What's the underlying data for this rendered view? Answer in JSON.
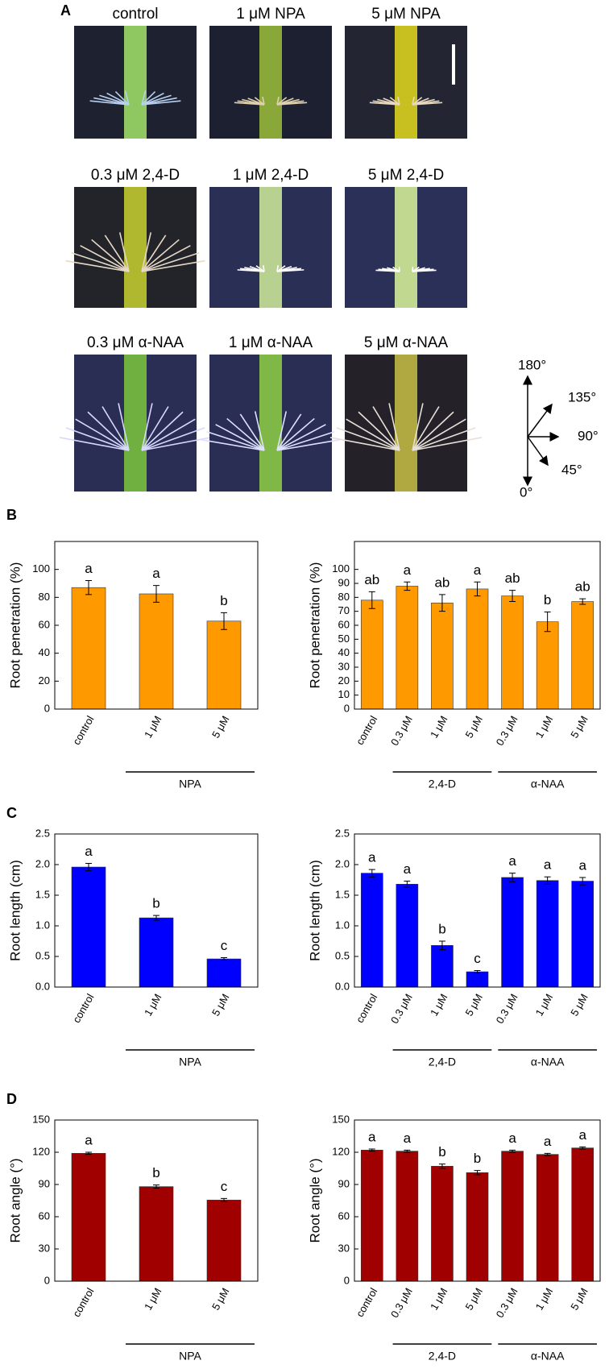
{
  "panel_labels": [
    "A",
    "B",
    "C",
    "D"
  ],
  "panel_a": {
    "photos": [
      "control",
      "1 μM NPA",
      "5 μM NPA",
      "0.3 μM 2,4-D",
      "1 μM 2,4-D",
      "5 μM 2,4-D",
      "0.3 μM α-NAA",
      "1 μM α-NAA",
      "5 μM α-NAA"
    ],
    "angles": [
      "180°",
      "135°",
      "90°",
      "45°",
      "0°"
    ]
  },
  "chart_data": [
    {
      "type": "bar",
      "ylabel": "Root penetration (%)",
      "color": "#ff9900",
      "categories": [
        "control",
        "1 μM",
        "5 μM"
      ],
      "values": [
        87,
        82.5,
        63
      ],
      "errors": [
        5,
        6,
        6
      ],
      "annotations": [
        "a",
        "a",
        "b"
      ],
      "groups": [
        {
          "name": "NPA",
          "first": 1,
          "last": 2
        }
      ],
      "ylim": [
        0,
        120
      ],
      "yticks": [
        0,
        20,
        40,
        60,
        80,
        100
      ]
    },
    {
      "type": "bar",
      "ylabel": "Root penetration (%)",
      "color": "#ff9900",
      "categories": [
        "control",
        "0.3 μM",
        "1 μM",
        "5 μM",
        "0.3 μM",
        "1 μM",
        "5 μM"
      ],
      "values": [
        78,
        88,
        76,
        86,
        81,
        62.5,
        77
      ],
      "errors": [
        6,
        3,
        6,
        5,
        4,
        7,
        2
      ],
      "annotations": [
        "ab",
        "a",
        "ab",
        "a",
        "ab",
        "b",
        "ab"
      ],
      "groups": [
        {
          "name": "2,4-D",
          "first": 1,
          "last": 3
        },
        {
          "name": "α-NAA",
          "first": 4,
          "last": 6
        }
      ],
      "ylim": [
        0,
        120
      ],
      "yticks": [
        0,
        10,
        20,
        30,
        40,
        50,
        60,
        70,
        80,
        90,
        100
      ]
    },
    {
      "type": "bar",
      "ylabel": "Root length (cm)",
      "color": "#0000ff",
      "categories": [
        "control",
        "1 μM",
        "5 μM"
      ],
      "values": [
        1.96,
        1.13,
        0.46
      ],
      "errors": [
        0.06,
        0.04,
        0.02
      ],
      "annotations": [
        "a",
        "b",
        "c"
      ],
      "groups": [
        {
          "name": "NPA",
          "first": 1,
          "last": 2
        }
      ],
      "ylim": [
        0,
        2.5
      ],
      "yticks": [
        {
          "value": 0,
          "label": "0.0"
        },
        0.5,
        {
          "value": 1,
          "label": "1.0"
        },
        1.5,
        {
          "value": 2,
          "label": "2.0"
        },
        2.5
      ]
    },
    {
      "type": "bar",
      "ylabel": "Root length (cm)",
      "color": "#0000ff",
      "categories": [
        "control",
        "0.3 μM",
        "1 μM",
        "5 μM",
        "0.3 μM",
        "1 μM",
        "5 μM"
      ],
      "values": [
        1.86,
        1.68,
        0.68,
        0.25,
        1.79,
        1.74,
        1.73
      ],
      "errors": [
        0.06,
        0.05,
        0.07,
        0.02,
        0.07,
        0.06,
        0.06
      ],
      "annotations": [
        "a",
        "a",
        "b",
        "c",
        "a",
        "a",
        "a"
      ],
      "groups": [
        {
          "name": "2,4-D",
          "first": 1,
          "last": 3
        },
        {
          "name": "α-NAA",
          "first": 4,
          "last": 6
        }
      ],
      "ylim": [
        0,
        2.5
      ],
      "yticks": [
        {
          "value": 0,
          "label": "0.0"
        },
        0.5,
        {
          "value": 1,
          "label": "1.0"
        },
        1.5,
        {
          "value": 2,
          "label": "2.0"
        },
        2.5
      ]
    },
    {
      "type": "bar",
      "ylabel": "Root angle (°)",
      "color": "#a00000",
      "categories": [
        "control",
        "1 μM",
        "5 μM"
      ],
      "values": [
        119,
        88,
        75.5
      ],
      "errors": [
        1,
        1.5,
        1.5
      ],
      "annotations": [
        "a",
        "b",
        "c"
      ],
      "groups": [
        {
          "name": "NPA",
          "first": 1,
          "last": 2
        }
      ],
      "ylim": [
        0,
        150
      ],
      "yticks": [
        0,
        30,
        60,
        90,
        120,
        150
      ]
    },
    {
      "type": "bar",
      "ylabel": "Root angle (°)",
      "color": "#a00000",
      "categories": [
        "control",
        "0.3 μM",
        "1 μM",
        "5 μM",
        "0.3 μM",
        "1 μM",
        "5 μM"
      ],
      "values": [
        122,
        121,
        107,
        101,
        121,
        118,
        124
      ],
      "errors": [
        1,
        1,
        2,
        2,
        1,
        1,
        1
      ],
      "annotations": [
        "a",
        "a",
        "b",
        "b",
        "a",
        "a",
        "a"
      ],
      "groups": [
        {
          "name": "2,4-D",
          "first": 1,
          "last": 3
        },
        {
          "name": "α-NAA",
          "first": 4,
          "last": 6
        }
      ],
      "ylim": [
        0,
        150
      ],
      "yticks": [
        0,
        30,
        60,
        90,
        120,
        150
      ]
    }
  ]
}
